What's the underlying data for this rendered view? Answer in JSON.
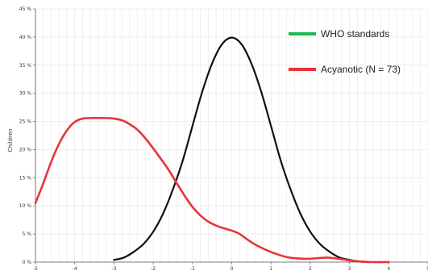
{
  "chart_data": {
    "type": "line",
    "ylabel": "Children",
    "xlim": [
      -5,
      5
    ],
    "ylim": [
      0,
      45
    ],
    "grid": true,
    "legend_position": "top-right",
    "x_ticks": [
      {
        "value": -5,
        "label": "-5"
      },
      {
        "value": -4,
        "label": "-4"
      },
      {
        "value": -3,
        "label": "-3"
      },
      {
        "value": -2,
        "label": "-2"
      },
      {
        "value": -1,
        "label": "-1"
      },
      {
        "value": 0,
        "label": "0"
      },
      {
        "value": 1,
        "label": "1"
      },
      {
        "value": 2,
        "label": "2"
      },
      {
        "value": 3,
        "label": "3"
      },
      {
        "value": 4,
        "label": "4"
      },
      {
        "value": 5,
        "label": "5"
      }
    ],
    "y_ticks": [
      {
        "value": 0,
        "label": "0 %"
      },
      {
        "value": 5,
        "label": "5 %"
      },
      {
        "value": 10,
        "label": "10 %"
      },
      {
        "value": 15,
        "label": "15 %"
      },
      {
        "value": 20,
        "label": "20 %"
      },
      {
        "value": 25,
        "label": "25 %"
      },
      {
        "value": 30,
        "label": "30 %"
      },
      {
        "value": 35,
        "label": "35 %"
      },
      {
        "value": 40,
        "label": "40 %"
      },
      {
        "value": 45,
        "label": "45 %"
      }
    ],
    "series": [
      {
        "name": "WHO standards",
        "legend_color": "#1db954",
        "line_color": "#111111",
        "x": [
          -3.0,
          -2.75,
          -2.5,
          -2.25,
          -2.0,
          -1.75,
          -1.5,
          -1.25,
          -1.0,
          -0.75,
          -0.5,
          -0.25,
          0.0,
          0.25,
          0.5,
          0.75,
          1.0,
          1.25,
          1.5,
          1.75,
          2.0,
          2.25,
          2.5,
          2.75,
          3.0,
          3.25,
          3.5
        ],
        "values": [
          0.4,
          0.8,
          1.8,
          3.2,
          5.4,
          8.6,
          12.9,
          18.0,
          24.2,
          30.3,
          35.3,
          38.7,
          39.9,
          38.7,
          35.3,
          30.3,
          24.2,
          18.0,
          12.9,
          8.6,
          5.4,
          3.2,
          1.8,
          0.8,
          0.4,
          0.1,
          0.0
        ]
      },
      {
        "name": "Acyanotic  (N = 73)",
        "legend_color": "#e8333a",
        "line_color": "#e8333a",
        "x": [
          -5.0,
          -4.8,
          -4.6,
          -4.4,
          -4.2,
          -4.0,
          -3.8,
          -3.6,
          -3.4,
          -3.2,
          -3.0,
          -2.8,
          -2.6,
          -2.4,
          -2.2,
          -2.0,
          -1.8,
          -1.6,
          -1.4,
          -1.2,
          -1.0,
          -0.8,
          -0.6,
          -0.4,
          -0.2,
          0.0,
          0.2,
          0.4,
          0.6,
          0.8,
          1.0,
          1.2,
          1.4,
          1.6,
          1.8,
          2.0,
          2.2,
          2.4,
          2.6,
          2.8,
          3.0,
          3.2,
          3.4,
          3.6,
          4.0
        ],
        "values": [
          10.5,
          14.0,
          17.8,
          21.0,
          23.4,
          24.9,
          25.5,
          25.6,
          25.6,
          25.6,
          25.5,
          25.2,
          24.5,
          23.5,
          22.0,
          20.2,
          18.3,
          16.3,
          14.0,
          11.8,
          9.8,
          8.3,
          7.2,
          6.5,
          6.0,
          5.6,
          5.0,
          4.0,
          3.1,
          2.4,
          1.8,
          1.3,
          0.9,
          0.7,
          0.6,
          0.6,
          0.7,
          0.8,
          0.7,
          0.5,
          0.3,
          0.15,
          0.05,
          0.0,
          0.0
        ]
      }
    ]
  }
}
